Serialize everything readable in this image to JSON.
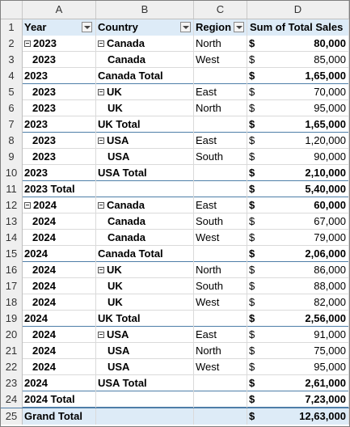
{
  "columns": [
    "A",
    "B",
    "C",
    "D"
  ],
  "headers": {
    "year": "Year",
    "country": "Country",
    "region": "Region",
    "sales": "Sum of Total Sales"
  },
  "currency": "$",
  "rows": [
    {
      "n": "2",
      "a": "2023",
      "b": "Canada",
      "c": "North",
      "d": "80,000",
      "type": "first",
      "ca": true,
      "cb": true
    },
    {
      "n": "3",
      "a": "2023",
      "b": "Canada",
      "c": "West",
      "d": "85,000",
      "type": "detail"
    },
    {
      "n": "4",
      "a": "2023",
      "b": "Canada Total",
      "c": "",
      "d": "1,65,000",
      "type": "subtotal"
    },
    {
      "n": "5",
      "a": "2023",
      "b": "UK",
      "c": "East",
      "d": "70,000",
      "type": "detail",
      "cb": true
    },
    {
      "n": "6",
      "a": "2023",
      "b": "UK",
      "c": "North",
      "d": "95,000",
      "type": "detail"
    },
    {
      "n": "7",
      "a": "2023",
      "b": "UK Total",
      "c": "",
      "d": "1,65,000",
      "type": "subtotal"
    },
    {
      "n": "8",
      "a": "2023",
      "b": "USA",
      "c": "East",
      "d": "1,20,000",
      "type": "detail",
      "cb": true
    },
    {
      "n": "9",
      "a": "2023",
      "b": "USA",
      "c": "South",
      "d": "90,000",
      "type": "detail"
    },
    {
      "n": "10",
      "a": "2023",
      "b": "USA Total",
      "c": "",
      "d": "2,10,000",
      "type": "subtotal"
    },
    {
      "n": "11",
      "a": "2023 Total",
      "b": "",
      "c": "",
      "d": "5,40,000",
      "type": "yeartotal"
    },
    {
      "n": "12",
      "a": "2024",
      "b": "Canada",
      "c": "East",
      "d": "60,000",
      "type": "first",
      "ca": true,
      "cb": true
    },
    {
      "n": "13",
      "a": "2024",
      "b": "Canada",
      "c": "South",
      "d": "67,000",
      "type": "detail"
    },
    {
      "n": "14",
      "a": "2024",
      "b": "Canada",
      "c": "West",
      "d": "79,000",
      "type": "detail"
    },
    {
      "n": "15",
      "a": "2024",
      "b": "Canada Total",
      "c": "",
      "d": "2,06,000",
      "type": "subtotal"
    },
    {
      "n": "16",
      "a": "2024",
      "b": "UK",
      "c": "North",
      "d": "86,000",
      "type": "detail",
      "cb": true
    },
    {
      "n": "17",
      "a": "2024",
      "b": "UK",
      "c": "South",
      "d": "88,000",
      "type": "detail"
    },
    {
      "n": "18",
      "a": "2024",
      "b": "UK",
      "c": "West",
      "d": "82,000",
      "type": "detail"
    },
    {
      "n": "19",
      "a": "2024",
      "b": "UK Total",
      "c": "",
      "d": "2,56,000",
      "type": "subtotal"
    },
    {
      "n": "20",
      "a": "2024",
      "b": "USA",
      "c": "East",
      "d": "91,000",
      "type": "detail",
      "cb": true
    },
    {
      "n": "21",
      "a": "2024",
      "b": "USA",
      "c": "North",
      "d": "75,000",
      "type": "detail"
    },
    {
      "n": "22",
      "a": "2024",
      "b": "USA",
      "c": "West",
      "d": "95,000",
      "type": "detail"
    },
    {
      "n": "23",
      "a": "2024",
      "b": "USA Total",
      "c": "",
      "d": "2,61,000",
      "type": "subtotal"
    },
    {
      "n": "24",
      "a": "2024 Total",
      "b": "",
      "c": "",
      "d": "7,23,000",
      "type": "yeartotal"
    },
    {
      "n": "25",
      "a": "Grand Total",
      "b": "",
      "c": "",
      "d": "12,63,000",
      "type": "grand"
    }
  ]
}
